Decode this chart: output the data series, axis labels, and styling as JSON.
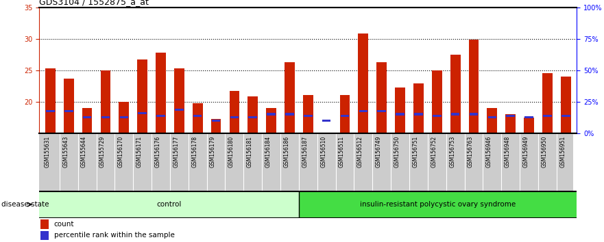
{
  "title": "GDS3104 / 1552875_a_at",
  "samples": [
    "GSM155631",
    "GSM155643",
    "GSM155644",
    "GSM155729",
    "GSM156170",
    "GSM156171",
    "GSM156176",
    "GSM156177",
    "GSM156178",
    "GSM156179",
    "GSM156180",
    "GSM156181",
    "GSM156184",
    "GSM156186",
    "GSM156187",
    "GSM156510",
    "GSM156511",
    "GSM156512",
    "GSM156749",
    "GSM156750",
    "GSM156751",
    "GSM156752",
    "GSM156753",
    "GSM156763",
    "GSM156946",
    "GSM156948",
    "GSM156949",
    "GSM156950",
    "GSM156951"
  ],
  "count_values": [
    25.3,
    23.7,
    19.0,
    25.0,
    20.0,
    26.7,
    27.8,
    25.3,
    19.7,
    17.2,
    21.7,
    20.8,
    19.0,
    26.3,
    21.0,
    15.1,
    21.0,
    30.8,
    26.3,
    22.2,
    22.9,
    25.0,
    27.5,
    29.8,
    19.0,
    18.0,
    17.5,
    24.5,
    24.0
  ],
  "percentile_marker": [
    18.5,
    18.5,
    17.5,
    17.5,
    17.5,
    18.2,
    17.7,
    18.7,
    17.7,
    17.0,
    17.5,
    17.5,
    18.0,
    18.0,
    17.7,
    17.0,
    17.7,
    18.5,
    18.5,
    18.0,
    18.0,
    17.7,
    18.0,
    18.0,
    17.5,
    17.7,
    17.5,
    17.7,
    17.7
  ],
  "bar_bottom": 15.0,
  "ylim_left": [
    15,
    35
  ],
  "ylim_right": [
    0,
    100
  ],
  "yticks_left": [
    20,
    25,
    30,
    35
  ],
  "yticks_right": [
    0,
    25,
    50,
    75,
    100
  ],
  "ytick_labels_right": [
    "0%",
    "25%",
    "50%",
    "75%",
    "100%"
  ],
  "control_count": 14,
  "disease_label": "control",
  "disease_label2": "insulin-resistant polycystic ovary syndrome",
  "bar_color_red": "#cc2200",
  "bar_color_blue": "#3333cc",
  "control_bg": "#ccffcc",
  "disease_bg": "#44dd44",
  "xlabel_bg": "#cccccc",
  "title_fontsize": 9,
  "tick_fontsize": 7,
  "label_fontsize": 7.5,
  "legend_fontsize": 7.5
}
